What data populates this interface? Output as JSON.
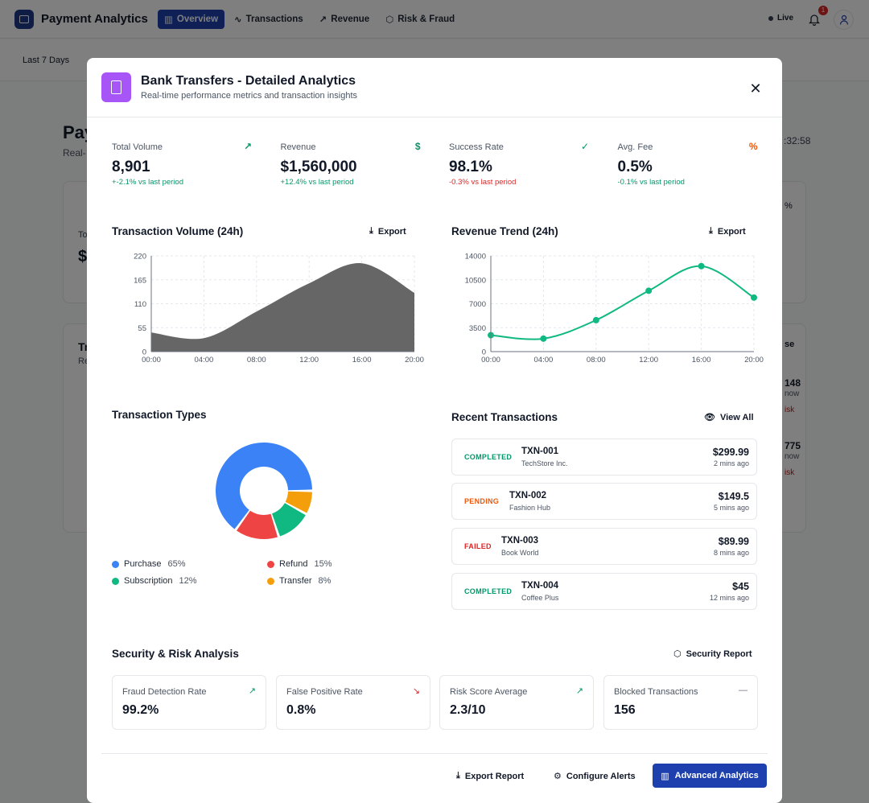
{
  "app": {
    "title": "Payment Analytics",
    "nav": [
      {
        "label": "Overview",
        "icon": "bar-chart-icon"
      },
      {
        "label": "Transactions",
        "icon": "activity-icon"
      },
      {
        "label": "Revenue",
        "icon": "trending-up-icon"
      },
      {
        "label": "Risk & Fraud",
        "icon": "shield-icon"
      }
    ],
    "live": "Live",
    "notifications": "1"
  },
  "filters": {
    "range": "Last 7 Days"
  },
  "background": {
    "title_fragment": "Pay",
    "subtitle_fragment": "Real-",
    "time_fragment": ":32:58",
    "card_label_fragment": "To",
    "card_value_fragment": "$",
    "pct_fragment": "%",
    "section_fragment": "Tr",
    "section_sub_fragment": "Re",
    "col_fragment": "se",
    "rows": [
      {
        "amount": "148",
        "time": "now",
        "risk": "isk"
      },
      {
        "amount": "775",
        "time": "now",
        "risk": "isk"
      }
    ]
  },
  "modal": {
    "title": "Bank Transfers - Detailed Analytics",
    "subtitle": "Real-time performance metrics and transaction insights",
    "stats": [
      {
        "label": "Total Volume",
        "value": "8,901",
        "change": "+-2.1% vs last period",
        "change_color": "#059669",
        "icon": "trending-up-icon",
        "icon_color": "#059669"
      },
      {
        "label": "Revenue",
        "value": "$1,560,000",
        "change": "+12.4% vs last period",
        "change_color": "#059669",
        "icon": "dollar-icon",
        "icon_color": "#059669"
      },
      {
        "label": "Success Rate",
        "value": "98.1%",
        "change": "-0.3% vs last period",
        "change_color": "#dc2626",
        "icon": "check-circle-icon",
        "icon_color": "#059669"
      },
      {
        "label": "Avg. Fee",
        "value": "0.5%",
        "change": "-0.1% vs last period",
        "change_color": "#059669",
        "icon": "percent-icon",
        "icon_color": "#ea580c"
      }
    ],
    "export_label": "Export",
    "view_all": "View All",
    "recent_title": "Recent Transactions",
    "transactions": [
      {
        "status": "COMPLETED",
        "status_color": "#059669",
        "id": "TXN-001",
        "merchant": "TechStore Inc.",
        "amount": "$299.99",
        "time": "2 mins ago"
      },
      {
        "status": "PENDING",
        "status_color": "#ea580c",
        "id": "TXN-002",
        "merchant": "Fashion Hub",
        "amount": "$149.5",
        "time": "5 mins ago"
      },
      {
        "status": "FAILED",
        "status_color": "#dc2626",
        "id": "TXN-003",
        "merchant": "Book World",
        "amount": "$89.99",
        "time": "8 mins ago"
      },
      {
        "status": "COMPLETED",
        "status_color": "#059669",
        "id": "TXN-004",
        "merchant": "Coffee Plus",
        "amount": "$45",
        "time": "12 mins ago"
      }
    ],
    "security": {
      "title": "Security & Risk Analysis",
      "report_label": "Security Report",
      "cards": [
        {
          "label": "Fraud Detection Rate",
          "value": "99.2%",
          "icon": "trending-up-icon",
          "icon_color": "#059669"
        },
        {
          "label": "False Positive Rate",
          "value": "0.8%",
          "icon": "trending-down-icon",
          "icon_color": "#dc2626"
        },
        {
          "label": "Risk Score Average",
          "value": "2.3/10",
          "icon": "trending-up-icon",
          "icon_color": "#059669"
        },
        {
          "label": "Blocked Transactions",
          "value": "156",
          "icon": "minus-icon",
          "icon_color": "#6b7280"
        }
      ]
    },
    "footer": {
      "export_report": "Export Report",
      "configure_alerts": "Configure Alerts",
      "advanced": "Advanced Analytics"
    }
  },
  "chart_data": [
    {
      "type": "area",
      "title": "Transaction Volume (24h)",
      "categories": [
        "00:00",
        "04:00",
        "08:00",
        "12:00",
        "16:00",
        "20:00"
      ],
      "values": [
        44,
        31,
        92,
        157,
        203,
        135
      ],
      "ylim": [
        0,
        220
      ],
      "yticks": [
        0,
        55,
        110,
        165,
        220
      ],
      "grid": true,
      "color": "#666666"
    },
    {
      "type": "line",
      "title": "Revenue Trend (24h)",
      "categories": [
        "00:00",
        "04:00",
        "08:00",
        "12:00",
        "16:00",
        "20:00"
      ],
      "values": [
        2400,
        1900,
        4600,
        8900,
        12500,
        7900
      ],
      "ylim": [
        0,
        14000
      ],
      "yticks": [
        0,
        3500,
        7000,
        10500,
        14000
      ],
      "grid": true,
      "color": "#10b981"
    },
    {
      "type": "pie",
      "title": "Transaction Types",
      "donut": true,
      "legend": "bottom",
      "slices": [
        {
          "name": "Purchase",
          "value": 65,
          "color": "#3b82f6"
        },
        {
          "name": "Refund",
          "value": 15,
          "color": "#ef4444"
        },
        {
          "name": "Subscription",
          "value": 12,
          "color": "#10b981"
        },
        {
          "name": "Transfer",
          "value": 8,
          "color": "#f59e0b"
        }
      ]
    }
  ]
}
